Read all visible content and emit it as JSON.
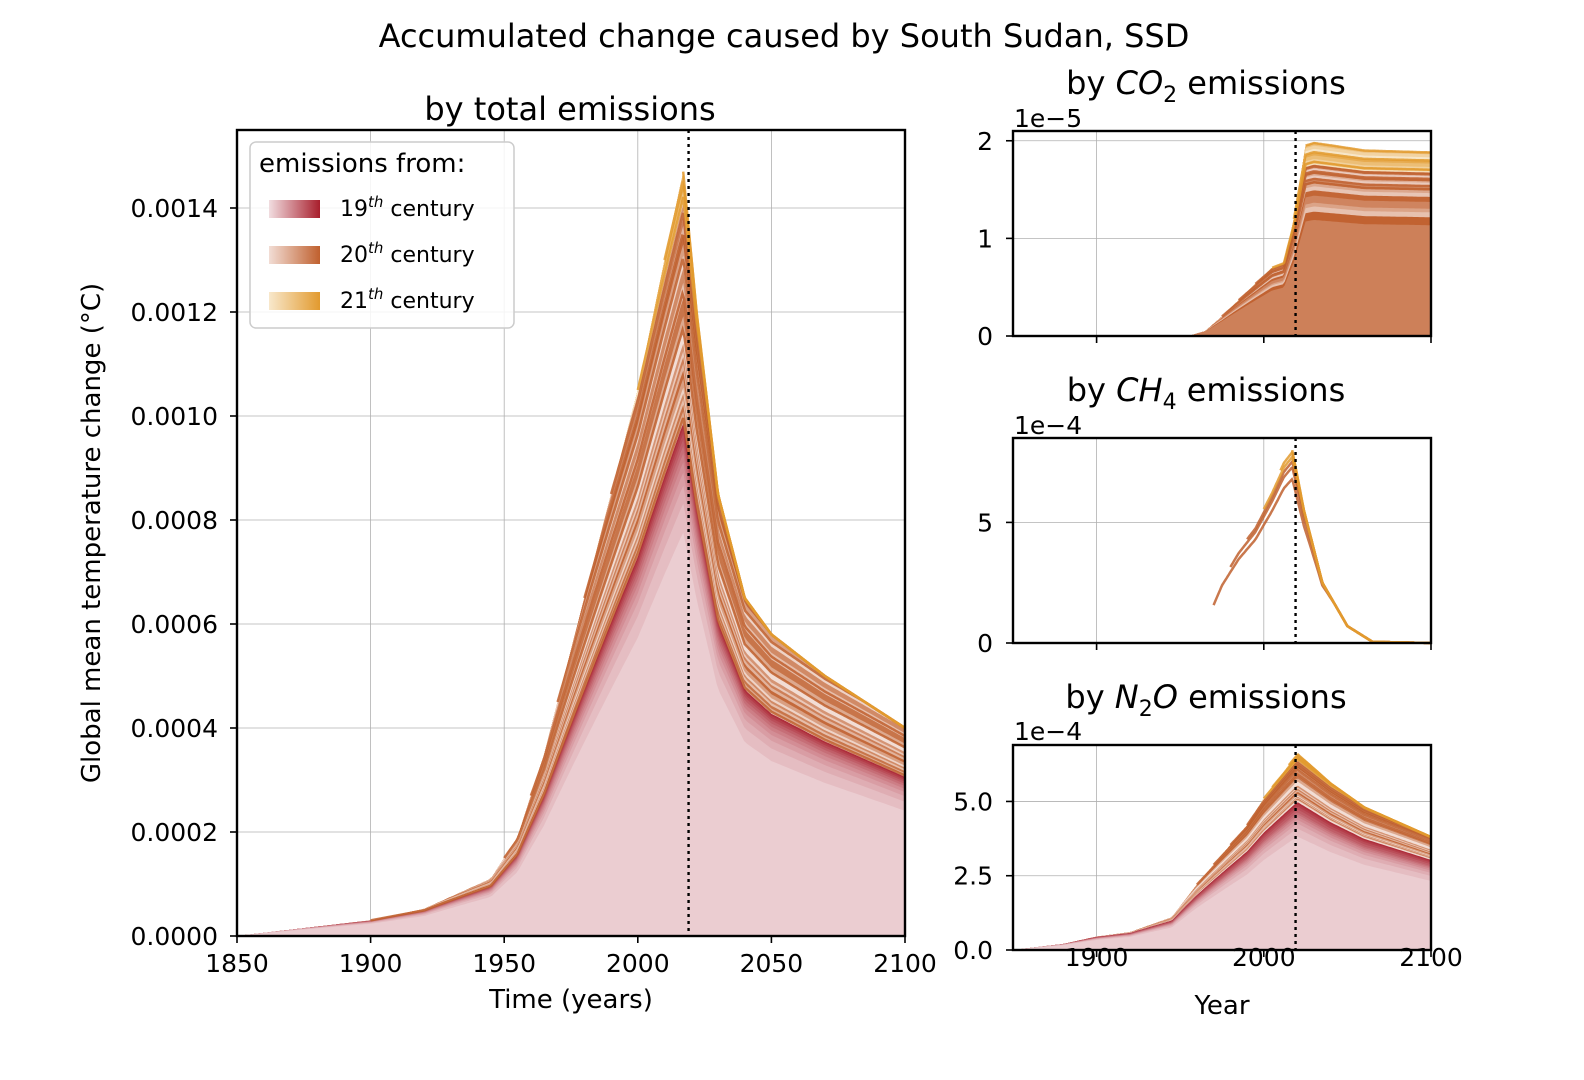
{
  "figure": {
    "title": "Accumulated change caused by South Sudan, SSD",
    "colors": {
      "c19_light": "#f1dde0",
      "c19_dark": "#a81e2c",
      "c20_light": "#f2ddd5",
      "c20_dark": "#c0602e",
      "c21_light": "#f8e8cc",
      "c21_dark": "#e29a2e"
    }
  },
  "legend": {
    "title": "emissions from:",
    "entries": [
      {
        "label_base": "19",
        "label_sup": "th",
        "label_rest": " century"
      },
      {
        "label_base": "20",
        "label_sup": "th",
        "label_rest": " century"
      },
      {
        "label_base": "21",
        "label_sup": "th",
        "label_rest": " century"
      }
    ]
  },
  "chart_data": [
    {
      "id": "total",
      "type": "area",
      "title": "by total emissions",
      "xlabel": "Time (years)",
      "ylabel": "Global mean temperature change (°C)",
      "xlim": [
        1850,
        2100
      ],
      "ylim": [
        0,
        0.00155
      ],
      "xticks": [
        1850,
        1900,
        1950,
        2000,
        2050,
        2100
      ],
      "yticks": [
        "0.0000",
        "0.0002",
        "0.0004",
        "0.0006",
        "0.0008",
        "0.0010",
        "0.0012",
        "0.0014"
      ],
      "ytick_values": [
        0,
        0.0002,
        0.0004,
        0.0006,
        0.0008,
        0.001,
        0.0012,
        0.0014
      ],
      "reference_year": 2019,
      "envelope": [
        [
          1850,
          0
        ],
        [
          1870,
          1.2e-05
        ],
        [
          1900,
          3e-05
        ],
        [
          1920,
          5.2e-05
        ],
        [
          1945,
          0.00011
        ],
        [
          1955,
          0.00019
        ],
        [
          1965,
          0.00035
        ],
        [
          1975,
          0.00055
        ],
        [
          1990,
          0.00085
        ],
        [
          2000,
          0.00105
        ],
        [
          2010,
          0.0013
        ],
        [
          2017,
          0.00147
        ],
        [
          2022,
          0.0012
        ],
        [
          2030,
          0.00085
        ],
        [
          2040,
          0.00065
        ],
        [
          2050,
          0.00058
        ],
        [
          2070,
          0.0005
        ],
        [
          2100,
          0.0004
        ]
      ],
      "decade_peaks": [
        [
          1900,
          3.5e-05
        ],
        [
          1950,
          0.00015
        ],
        [
          1960,
          0.00023
        ],
        [
          1970,
          0.00047
        ],
        [
          1980,
          0.0007
        ],
        [
          1990,
          0.0009
        ],
        [
          2000,
          0.0011
        ],
        [
          2010,
          0.00134
        ],
        [
          2017,
          0.00147
        ]
      ]
    },
    {
      "id": "co2",
      "type": "area",
      "title_prefix": "by ",
      "title_species": "CO",
      "title_sub": "2",
      "title_suffix": " emissions",
      "scale_label": "1e−5",
      "xlim": [
        1850,
        2100
      ],
      "ylim": [
        0,
        2.1
      ],
      "yticks": [
        "0",
        "1",
        "2"
      ],
      "ytick_values": [
        0,
        1,
        2
      ],
      "reference_year": 2019,
      "envelope": [
        [
          1850,
          0
        ],
        [
          1955,
          0
        ],
        [
          1965,
          0.05
        ],
        [
          1975,
          0.2
        ],
        [
          1990,
          0.45
        ],
        [
          2005,
          0.7
        ],
        [
          2012,
          0.75
        ],
        [
          2018,
          1.2
        ],
        [
          2025,
          1.95
        ],
        [
          2030,
          1.98
        ],
        [
          2060,
          1.9
        ],
        [
          2100,
          1.88
        ]
      ],
      "decade_peaks": [
        [
          1975,
          0.1
        ],
        [
          1985,
          0.3
        ],
        [
          1995,
          0.48
        ],
        [
          2005,
          0.7
        ],
        [
          2018,
          1.15
        ],
        [
          2025,
          1.98
        ]
      ]
    },
    {
      "id": "ch4",
      "type": "area",
      "title_prefix": "by ",
      "title_species": "CH",
      "title_sub": "4",
      "title_suffix": " emissions",
      "scale_label": "1e−4",
      "xlim": [
        1850,
        2100
      ],
      "ylim": [
        0,
        8.5
      ],
      "yticks": [
        "0",
        "5"
      ],
      "ytick_values": [
        0,
        5
      ],
      "reference_year": 2019,
      "envelope": [
        [
          1850,
          0
        ],
        [
          1960,
          0
        ],
        [
          1968,
          1.2
        ],
        [
          1975,
          2.5
        ],
        [
          1985,
          3.8
        ],
        [
          1995,
          4.8
        ],
        [
          2005,
          6.3
        ],
        [
          2012,
          7.5
        ],
        [
          2017,
          8.0
        ],
        [
          2024,
          5.5
        ],
        [
          2035,
          2.5
        ],
        [
          2050,
          0.7
        ],
        [
          2065,
          0.05
        ],
        [
          2100,
          0
        ]
      ],
      "decade_peaks": [
        [
          1970,
          1.7
        ],
        [
          1980,
          3.4
        ],
        [
          1990,
          4.7
        ],
        [
          2000,
          5.9
        ],
        [
          2010,
          7.3
        ],
        [
          2017,
          8.0
        ]
      ]
    },
    {
      "id": "n2o",
      "type": "area",
      "title_prefix": "by ",
      "title_species": "N",
      "title_sub": "2",
      "title_species2": "O",
      "title_suffix": " emissions",
      "scale_label": "1e−4",
      "xlabel": "Year",
      "xlim": [
        1850,
        2100
      ],
      "ylim": [
        0,
        6.9
      ],
      "xticks": [
        1900,
        2000,
        2100
      ],
      "yticks": [
        "0.0",
        "2.5",
        "5.0"
      ],
      "ytick_values": [
        0,
        2.5,
        5
      ],
      "reference_year": 2019,
      "envelope": [
        [
          1850,
          0
        ],
        [
          1880,
          0.2
        ],
        [
          1900,
          0.45
        ],
        [
          1920,
          0.6
        ],
        [
          1945,
          1.1
        ],
        [
          1960,
          2.2
        ],
        [
          1975,
          3.2
        ],
        [
          1990,
          4.2
        ],
        [
          2000,
          5.1
        ],
        [
          2012,
          6.0
        ],
        [
          2020,
          6.6
        ],
        [
          2040,
          5.6
        ],
        [
          2060,
          4.8
        ],
        [
          2100,
          3.8
        ]
      ],
      "decade_peaks": [
        [
          1960,
          1.6
        ],
        [
          1970,
          2.3
        ],
        [
          1980,
          2.9
        ],
        [
          1990,
          3.6
        ],
        [
          2000,
          4.2
        ],
        [
          2005,
          5.1
        ],
        [
          2015,
          6.0
        ],
        [
          2020,
          6.6
        ]
      ]
    }
  ]
}
